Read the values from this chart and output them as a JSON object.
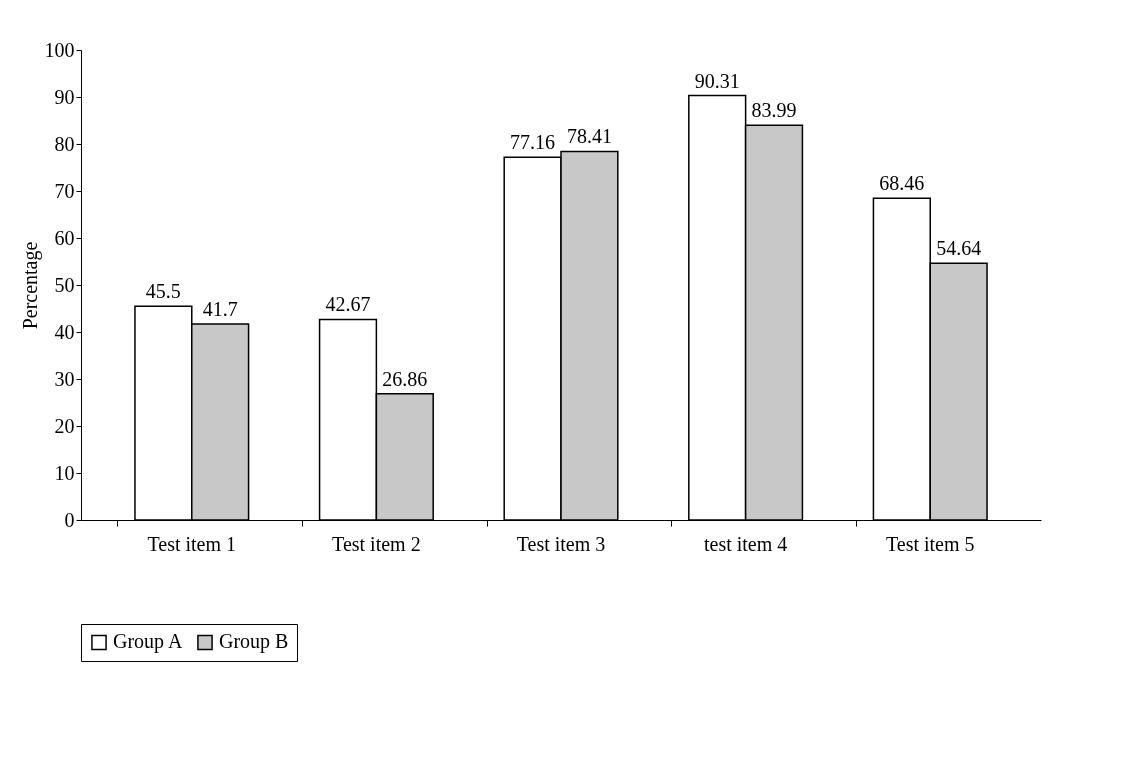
{
  "chart_data": {
    "type": "bar",
    "ylabel": "Percentage",
    "categories": [
      "Test item 1",
      "Test item 2",
      "Test item 3",
      "test item 4",
      "Test item 5"
    ],
    "series": [
      {
        "name": "Group A",
        "color": "#ffffff",
        "values": [
          45.5,
          42.67,
          77.16,
          90.31,
          68.46
        ]
      },
      {
        "name": "Group B",
        "color": "#c8c8c8",
        "values": [
          41.7,
          26.86,
          78.41,
          83.99,
          54.64
        ]
      }
    ],
    "ylim": [
      0,
      100
    ],
    "yticks": [
      0,
      10,
      20,
      30,
      40,
      50,
      60,
      70,
      80,
      90,
      100
    ],
    "grid": false,
    "legend": "bottom",
    "data_labels": true
  }
}
